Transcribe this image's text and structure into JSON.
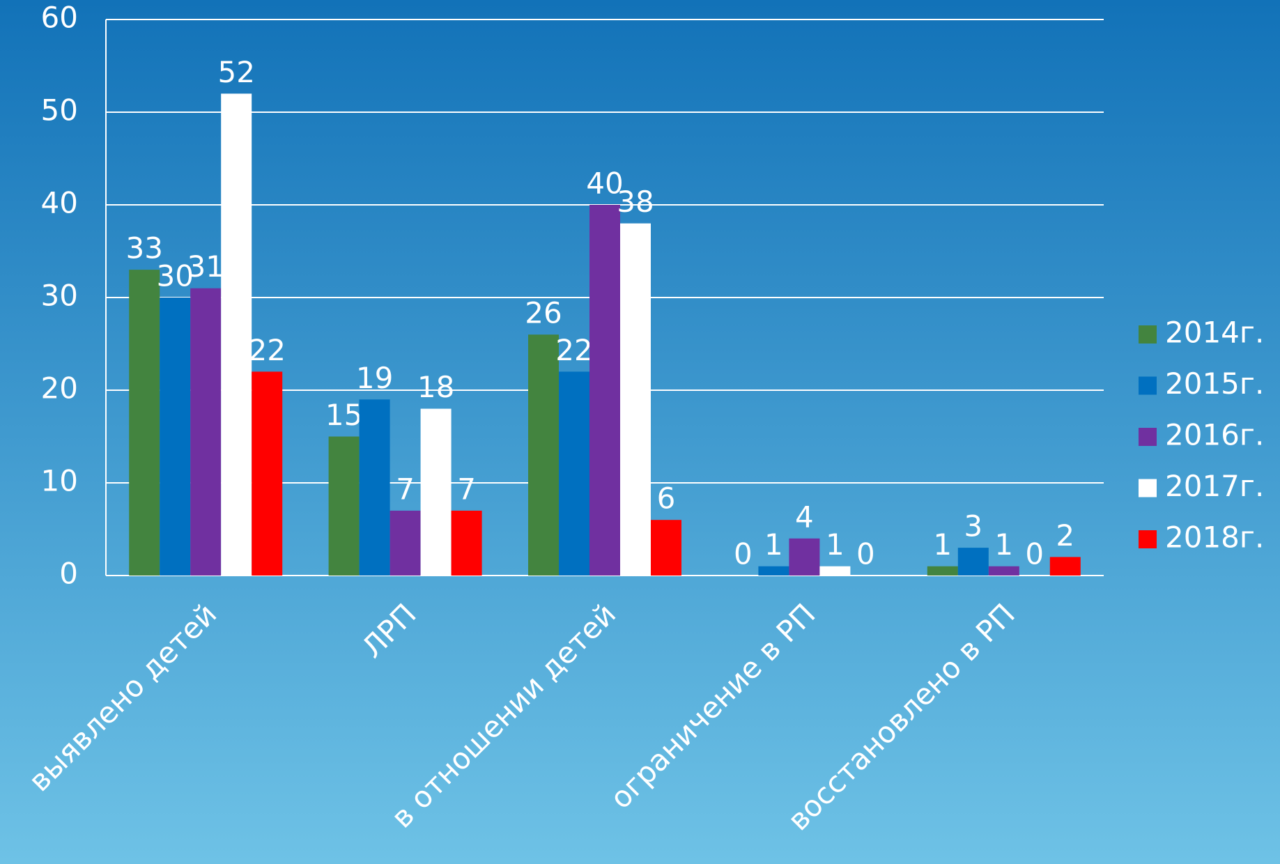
{
  "chart_data": {
    "type": "bar",
    "categories": [
      "выявлено детей",
      "ЛРП",
      "в отношении детей",
      "ограничение в РП",
      "восстановлено в РП"
    ],
    "series": [
      {
        "name": "2014г.",
        "color": "#43843f",
        "values": [
          33,
          15,
          26,
          0,
          1
        ]
      },
      {
        "name": "2015г.",
        "color": "#0070c0",
        "values": [
          30,
          19,
          22,
          1,
          3
        ]
      },
      {
        "name": "2016г.",
        "color": "#7030a0",
        "values": [
          31,
          7,
          40,
          4,
          1
        ]
      },
      {
        "name": "2017г.",
        "color": "#ffffff",
        "values": [
          52,
          18,
          38,
          1,
          0
        ]
      },
      {
        "name": "2018г.",
        "color": "#ff0000",
        "values": [
          22,
          7,
          6,
          0,
          2
        ]
      }
    ],
    "ylim": [
      0,
      60
    ],
    "yticks": [
      0,
      10,
      20,
      30,
      40,
      50,
      60
    ],
    "grid": true,
    "legend": "right"
  }
}
